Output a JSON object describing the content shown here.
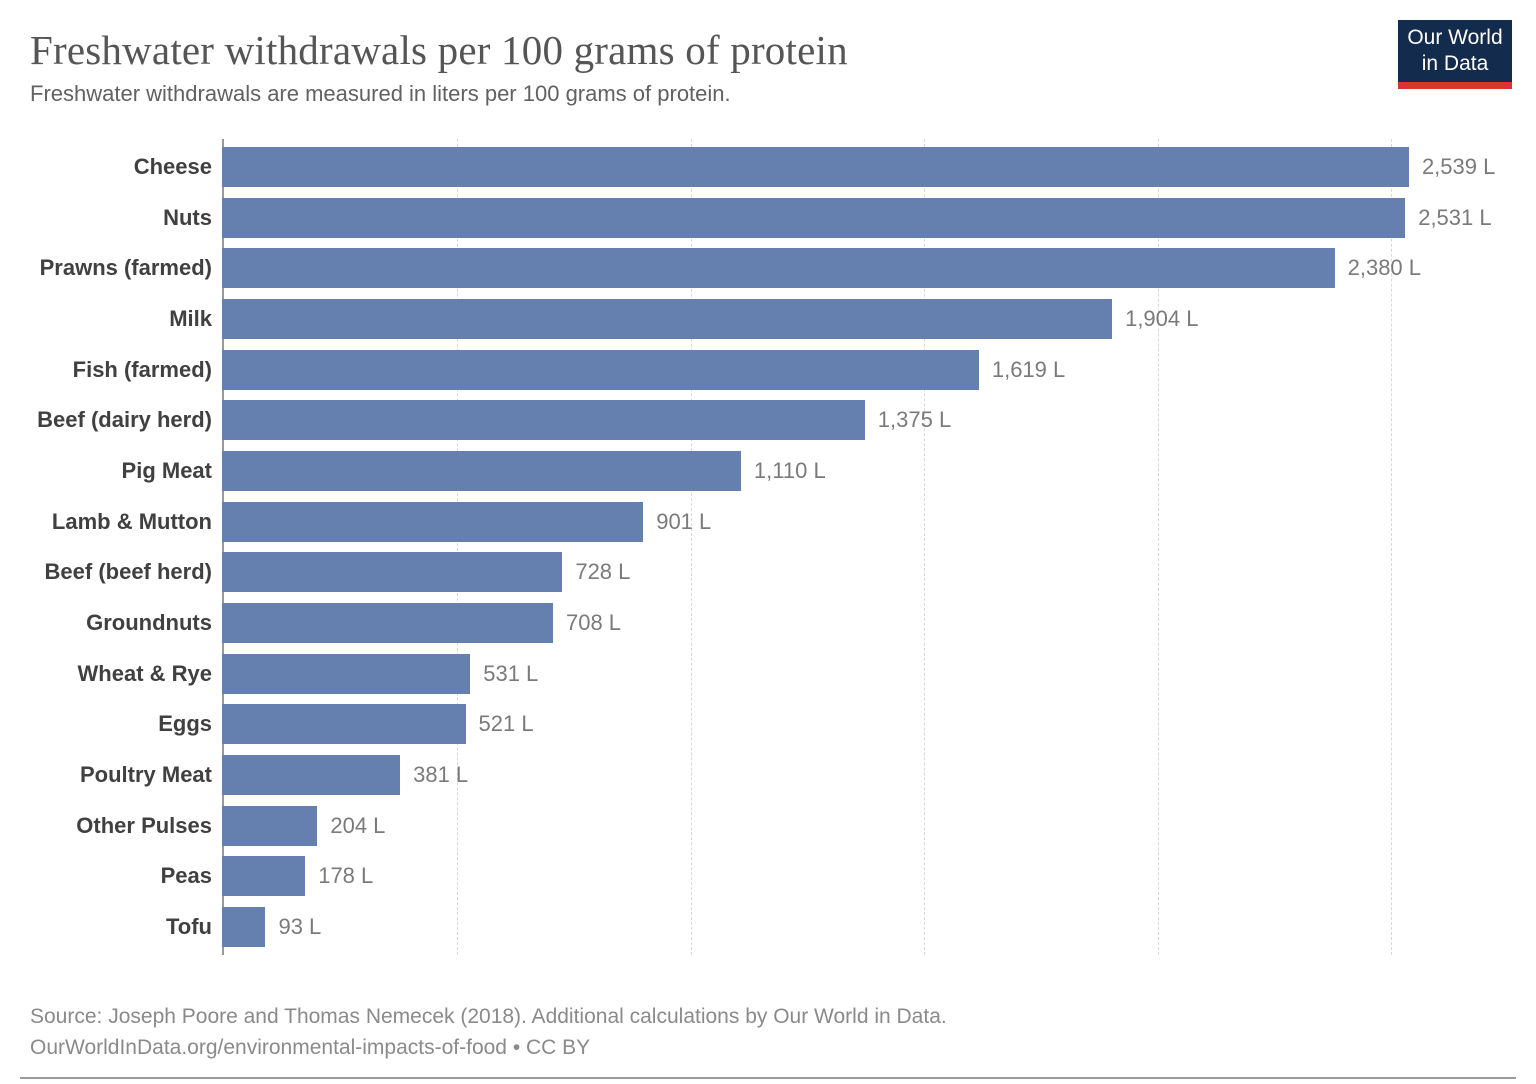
{
  "header": {
    "title": "Freshwater withdrawals per 100 grams of protein",
    "subtitle": "Freshwater withdrawals are measured in liters per 100 grams of protein."
  },
  "logo": {
    "line1": "Our World",
    "line2": "in Data",
    "bg_color": "#132c4e",
    "accent_color": "#d7362d"
  },
  "chart_data": {
    "type": "bar",
    "orientation": "horizontal",
    "title": "Freshwater withdrawals per 100 grams of protein",
    "subtitle": "Freshwater withdrawals are measured in liters per 100 grams of protein.",
    "unit": "liters per 100 grams of protein",
    "categories": [
      "Cheese",
      "Nuts",
      "Prawns (farmed)",
      "Milk",
      "Fish (farmed)",
      "Beef (dairy herd)",
      "Pig Meat",
      "Lamb & Mutton",
      "Beef (beef herd)",
      "Groundnuts",
      "Wheat & Rye",
      "Eggs",
      "Poultry Meat",
      "Other Pulses",
      "Peas",
      "Tofu"
    ],
    "values": [
      2539,
      2531,
      2380,
      1904,
      1619,
      1375,
      1110,
      901,
      728,
      708,
      531,
      521,
      381,
      204,
      178,
      93
    ],
    "value_labels": [
      "2,539 L",
      "2,531 L",
      "2,380 L",
      "1,904 L",
      "1,619 L",
      "1,375 L",
      "1,110 L",
      "901 L",
      "728 L",
      "708 L",
      "531 L",
      "521 L",
      "381 L",
      "204 L",
      "178 L",
      "93 L"
    ],
    "xlim": [
      0,
      2768
    ],
    "gridlines": [
      500,
      1000,
      1500,
      2000,
      2500
    ],
    "grid_style": "dashed",
    "legend": "none",
    "bar_color": "#6580af"
  },
  "footer": {
    "source_line1": "Source: Joseph Poore and Thomas Nemecek (2018). Additional calculations by Our World in Data.",
    "source_line2": "OurWorldInData.org/environmental-impacts-of-food • CC BY"
  }
}
